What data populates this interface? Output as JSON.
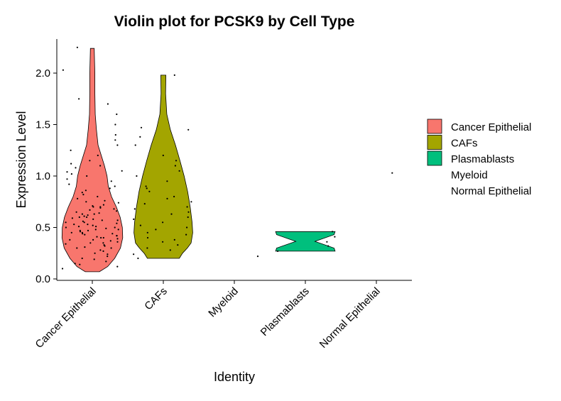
{
  "chart_data": {
    "type": "violin",
    "title": "Violin plot for PCSK9 by Cell Type",
    "xlabel": "Identity",
    "ylabel": "Expression Level",
    "ylim": [
      0,
      2.25
    ],
    "y_ticks": [
      "0.0",
      "0.5",
      "1.0",
      "1.5",
      "2.0"
    ],
    "y_tick_values": [
      0.0,
      0.5,
      1.0,
      1.5,
      2.0
    ],
    "categories": [
      "Cancer Epithelial",
      "CAFs",
      "Myeloid",
      "Plasmablasts",
      "Normal Epithelial"
    ],
    "grid": false,
    "legend_position": "right",
    "legend": [
      {
        "name": "Cancer Epithelial",
        "color": "#F8766D"
      },
      {
        "name": "CAFs",
        "color": "#A3A500"
      },
      {
        "name": "Plasmablasts",
        "color": "#00BF7D"
      },
      {
        "name": "Myeloid",
        "color": null
      },
      {
        "name": "Normal Epithelial",
        "color": null
      }
    ],
    "series": [
      {
        "name": "Cancer Epithelial",
        "color": "#F8766D",
        "range": [
          0.07,
          2.24
        ],
        "density": [
          [
            0.07,
            0.22
          ],
          [
            0.12,
            0.48
          ],
          [
            0.2,
            0.7
          ],
          [
            0.3,
            0.88
          ],
          [
            0.4,
            0.95
          ],
          [
            0.5,
            0.94
          ],
          [
            0.6,
            0.87
          ],
          [
            0.7,
            0.75
          ],
          [
            0.8,
            0.6
          ],
          [
            0.9,
            0.5
          ],
          [
            1.0,
            0.46
          ],
          [
            1.1,
            0.38
          ],
          [
            1.2,
            0.28
          ],
          [
            1.3,
            0.18
          ],
          [
            1.45,
            0.13
          ],
          [
            1.6,
            0.09
          ],
          [
            1.8,
            0.08
          ],
          [
            2.0,
            0.08
          ],
          [
            2.1,
            0.07
          ],
          [
            2.24,
            0.06
          ]
        ]
      },
      {
        "name": "CAFs",
        "color": "#A3A500",
        "range": [
          0.2,
          1.98
        ],
        "density": [
          [
            0.2,
            0.5
          ],
          [
            0.25,
            0.6
          ],
          [
            0.3,
            0.75
          ],
          [
            0.35,
            0.87
          ],
          [
            0.45,
            0.92
          ],
          [
            0.55,
            0.9
          ],
          [
            0.7,
            0.84
          ],
          [
            0.85,
            0.76
          ],
          [
            1.0,
            0.65
          ],
          [
            1.15,
            0.52
          ],
          [
            1.3,
            0.38
          ],
          [
            1.45,
            0.22
          ],
          [
            1.6,
            0.11
          ],
          [
            1.8,
            0.07
          ],
          [
            1.98,
            0.08
          ]
        ]
      },
      {
        "name": "Plasmablasts",
        "color": "#00BF7D",
        "range": [
          0.27,
          0.46
        ],
        "density": [
          [
            0.27,
            0.93
          ],
          [
            0.3,
            0.9
          ],
          [
            0.365,
            0.3
          ],
          [
            0.43,
            0.9
          ],
          [
            0.46,
            0.93
          ]
        ]
      }
    ],
    "points": [
      {
        "category": "Cancer Epithelial",
        "y": [
          0.1,
          0.12,
          0.14,
          0.15,
          0.17,
          0.19,
          0.2,
          0.22,
          0.24,
          0.25,
          0.27,
          0.28,
          0.3,
          0.3,
          0.31,
          0.32,
          0.33,
          0.34,
          0.35,
          0.35,
          0.36,
          0.37,
          0.38,
          0.38,
          0.39,
          0.4,
          0.4,
          0.41,
          0.42,
          0.42,
          0.43,
          0.44,
          0.44,
          0.45,
          0.45,
          0.46,
          0.47,
          0.47,
          0.48,
          0.48,
          0.49,
          0.5,
          0.5,
          0.51,
          0.51,
          0.52,
          0.53,
          0.53,
          0.54,
          0.55,
          0.55,
          0.56,
          0.57,
          0.57,
          0.58,
          0.59,
          0.6,
          0.6,
          0.61,
          0.62,
          0.63,
          0.63,
          0.64,
          0.65,
          0.66,
          0.67,
          0.68,
          0.69,
          0.7,
          0.7,
          0.71,
          0.72,
          0.74,
          0.75,
          0.76,
          0.78,
          0.8,
          0.82,
          0.84,
          0.86,
          0.88,
          0.9,
          0.92,
          0.95,
          0.97,
          1.0,
          1.02,
          1.04,
          1.05,
          1.08,
          1.1,
          1.12,
          1.15,
          1.2,
          1.25,
          1.3,
          1.35,
          1.4,
          1.5,
          1.6,
          1.7,
          1.75,
          2.03,
          2.25
        ]
      },
      {
        "category": "CAFs",
        "y": [
          0.2,
          0.24,
          0.28,
          0.3,
          0.33,
          0.36,
          0.38,
          0.4,
          0.43,
          0.45,
          0.48,
          0.5,
          0.52,
          0.55,
          0.58,
          0.6,
          0.63,
          0.65,
          0.68,
          0.7,
          0.73,
          0.75,
          0.78,
          0.8,
          0.85,
          0.88,
          0.9,
          0.95,
          1.0,
          1.05,
          1.1,
          1.15,
          1.2,
          1.3,
          1.38,
          1.45,
          1.47,
          1.98
        ]
      },
      {
        "category": "Myeloid",
        "y": [
          0.22
        ]
      },
      {
        "category": "Plasmablasts",
        "y": [
          0.27,
          0.32,
          0.36,
          0.41,
          0.46
        ]
      },
      {
        "category": "Normal Epithelial",
        "y": [
          1.03
        ]
      }
    ]
  }
}
